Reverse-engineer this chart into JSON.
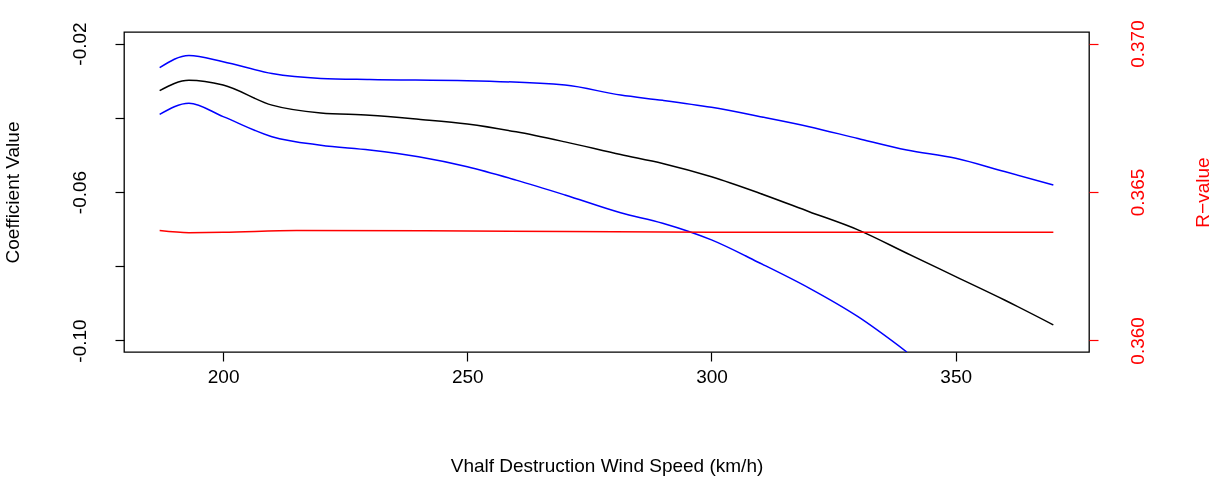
{
  "chart_data": {
    "type": "line",
    "xlabel": "Vhalf Destruction Wind Speed (km/h)",
    "ylabel": "Coefficient Value",
    "y2label": "R−value",
    "xlim": [
      179.7,
      377.3
    ],
    "xticks": [
      200,
      250,
      300,
      350
    ],
    "ylim": [
      -0.1031,
      -0.0169
    ],
    "yticks": [
      {
        "value": -0.02,
        "label": "-0.02"
      },
      {
        "value": -0.04,
        "label": null
      },
      {
        "value": -0.06,
        "label": "-0.06"
      },
      {
        "value": -0.08,
        "label": null
      },
      {
        "value": -0.1,
        "label": "-0.10"
      }
    ],
    "y2lim": [
      0.35961,
      0.37039
    ],
    "y2ticks": [
      {
        "value": 0.36,
        "label": "0.360"
      },
      {
        "value": 0.365,
        "label": "0.365"
      },
      {
        "value": 0.37,
        "label": "0.370"
      }
    ],
    "grid": false,
    "series": [
      {
        "color": "#0000ff",
        "x": [
          187,
          193,
          200,
          210,
          220,
          230,
          250,
          270,
          281.4,
          290,
          300,
          310,
          320,
          330,
          340,
          350,
          360,
          370
        ],
        "values": [
          -0.0265,
          -0.0232,
          -0.0249,
          -0.0281,
          -0.0294,
          -0.0297,
          -0.03,
          -0.0312,
          -0.0339,
          -0.0353,
          -0.0372,
          -0.0397,
          -0.0424,
          -0.0456,
          -0.0487,
          -0.0509,
          -0.0545,
          -0.0581
        ]
      },
      {
        "color": "#000000",
        "x": [
          187,
          193,
          200,
          210,
          220,
          230,
          240,
          250,
          260,
          270,
          281.4,
          290,
          300,
          310,
          320,
          330,
          340,
          350,
          360,
          370
        ],
        "values": [
          -0.0327,
          -0.0299,
          -0.0312,
          -0.0366,
          -0.0387,
          -0.0393,
          -0.0404,
          -0.0417,
          -0.0438,
          -0.0465,
          -0.0499,
          -0.0523,
          -0.0559,
          -0.0604,
          -0.0653,
          -0.0702,
          -0.0765,
          -0.0828,
          -0.0891,
          -0.0958
        ]
      },
      {
        "color": "#0000ff",
        "x": [
          187,
          193,
          200,
          210,
          220,
          230,
          240,
          250,
          260,
          270,
          281.4,
          290,
          300,
          310,
          320,
          330,
          340
        ],
        "values": [
          -0.0391,
          -0.0361,
          -0.0397,
          -0.0451,
          -0.0474,
          -0.0487,
          -0.0505,
          -0.0532,
          -0.0568,
          -0.0608,
          -0.0656,
          -0.0684,
          -0.0729,
          -0.0792,
          -0.0859,
          -0.0936,
          -0.1031
        ]
      },
      {
        "color": "#ff0000",
        "axis": "y2",
        "x": [
          187,
          193,
          200,
          215,
          250,
          300,
          370
        ],
        "values": [
          0.3637,
          0.36363,
          0.36364,
          0.3637,
          0.36369,
          0.36364,
          0.36364
        ]
      }
    ]
  }
}
